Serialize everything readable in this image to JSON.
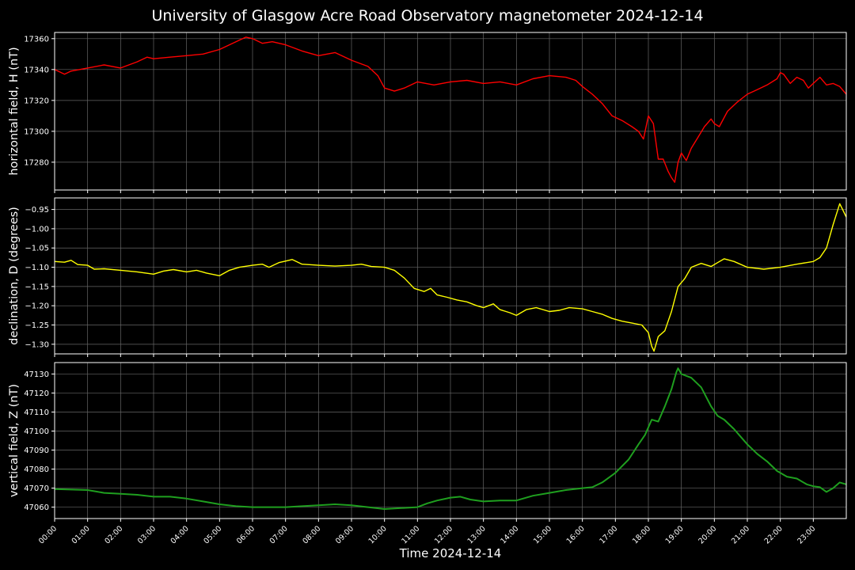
{
  "chart_data": {
    "title": "University of Glasgow Acre Road Observatory magnetometer 2024-12-14",
    "type": "line",
    "xlabel": "Time 2024-12-14",
    "x_range_hours": [
      0,
      24
    ],
    "x_ticks": [
      "00:00",
      "01:00",
      "02:00",
      "03:00",
      "04:00",
      "05:00",
      "06:00",
      "07:00",
      "08:00",
      "09:00",
      "10:00",
      "11:00",
      "12:00",
      "13:00",
      "14:00",
      "15:00",
      "16:00",
      "17:00",
      "18:00",
      "19:00",
      "20:00",
      "21:00",
      "22:00",
      "23:00"
    ],
    "grid": true,
    "background": "#000000",
    "panels": [
      {
        "name": "horizontal",
        "ylabel": "horizontal field, H (nT)",
        "color": "#ff0000",
        "ylim": [
          17262,
          17364
        ],
        "y_ticks": [
          "17280",
          "17300",
          "17320",
          "17340",
          "17360"
        ],
        "y_tick_values": [
          17280,
          17300,
          17320,
          17340,
          17360
        ],
        "points": [
          [
            0,
            17340
          ],
          [
            0.3,
            17337
          ],
          [
            0.5,
            17339
          ],
          [
            1,
            17341
          ],
          [
            1.5,
            17343
          ],
          [
            2,
            17341
          ],
          [
            2.5,
            17345
          ],
          [
            2.8,
            17348
          ],
          [
            3,
            17347
          ],
          [
            3.5,
            17348
          ],
          [
            4,
            17349
          ],
          [
            4.5,
            17350
          ],
          [
            5,
            17353
          ],
          [
            5.3,
            17356
          ],
          [
            5.6,
            17359
          ],
          [
            5.8,
            17361
          ],
          [
            6,
            17360
          ],
          [
            6.3,
            17357
          ],
          [
            6.6,
            17358
          ],
          [
            7,
            17356
          ],
          [
            7.5,
            17352
          ],
          [
            8,
            17349
          ],
          [
            8.5,
            17351
          ],
          [
            9,
            17346
          ],
          [
            9.5,
            17342
          ],
          [
            9.8,
            17336
          ],
          [
            10,
            17328
          ],
          [
            10.3,
            17326
          ],
          [
            10.6,
            17328
          ],
          [
            11,
            17332
          ],
          [
            11.5,
            17330
          ],
          [
            12,
            17332
          ],
          [
            12.5,
            17333
          ],
          [
            13,
            17331
          ],
          [
            13.5,
            17332
          ],
          [
            14,
            17330
          ],
          [
            14.5,
            17334
          ],
          [
            15,
            17336
          ],
          [
            15.5,
            17335
          ],
          [
            15.8,
            17333
          ],
          [
            16,
            17329
          ],
          [
            16.3,
            17324
          ],
          [
            16.6,
            17318
          ],
          [
            16.9,
            17310
          ],
          [
            17.2,
            17307
          ],
          [
            17.5,
            17303
          ],
          [
            17.7,
            17300
          ],
          [
            17.85,
            17295
          ],
          [
            18,
            17310
          ],
          [
            18.15,
            17305
          ],
          [
            18.3,
            17282
          ],
          [
            18.45,
            17282
          ],
          [
            18.6,
            17274
          ],
          [
            18.7,
            17270
          ],
          [
            18.8,
            17267
          ],
          [
            18.9,
            17280
          ],
          [
            19,
            17286
          ],
          [
            19.15,
            17281
          ],
          [
            19.3,
            17289
          ],
          [
            19.5,
            17296
          ],
          [
            19.7,
            17303
          ],
          [
            19.9,
            17308
          ],
          [
            20,
            17305
          ],
          [
            20.15,
            17303
          ],
          [
            20.4,
            17313
          ],
          [
            20.7,
            17319
          ],
          [
            21,
            17324
          ],
          [
            21.3,
            17327
          ],
          [
            21.6,
            17330
          ],
          [
            21.9,
            17334
          ],
          [
            22,
            17338
          ],
          [
            22.1,
            17337
          ],
          [
            22.3,
            17331
          ],
          [
            22.5,
            17335
          ],
          [
            22.7,
            17333
          ],
          [
            22.85,
            17328
          ],
          [
            23,
            17331
          ],
          [
            23.2,
            17335
          ],
          [
            23.4,
            17330
          ],
          [
            23.6,
            17331
          ],
          [
            23.8,
            17329
          ],
          [
            24,
            17324
          ]
        ]
      },
      {
        "name": "declination",
        "ylabel": "declination, D (degrees)",
        "color": "#ffff00",
        "ylim": [
          -1.325,
          -0.92
        ],
        "y_ticks": [
          "−1.30",
          "−1.25",
          "−1.20",
          "−1.15",
          "−1.10",
          "−1.05",
          "−1.00",
          "−0.95"
        ],
        "y_tick_values": [
          -1.3,
          -1.25,
          -1.2,
          -1.15,
          -1.1,
          -1.05,
          -1.0,
          -0.95
        ],
        "points": [
          [
            0,
            -1.085
          ],
          [
            0.3,
            -1.087
          ],
          [
            0.5,
            -1.082
          ],
          [
            0.7,
            -1.093
          ],
          [
            1,
            -1.095
          ],
          [
            1.2,
            -1.105
          ],
          [
            1.5,
            -1.104
          ],
          [
            2,
            -1.108
          ],
          [
            2.5,
            -1.112
          ],
          [
            3,
            -1.118
          ],
          [
            3.3,
            -1.11
          ],
          [
            3.6,
            -1.106
          ],
          [
            4,
            -1.112
          ],
          [
            4.3,
            -1.108
          ],
          [
            4.6,
            -1.115
          ],
          [
            5,
            -1.122
          ],
          [
            5.3,
            -1.108
          ],
          [
            5.6,
            -1.1
          ],
          [
            6,
            -1.095
          ],
          [
            6.3,
            -1.092
          ],
          [
            6.5,
            -1.1
          ],
          [
            6.8,
            -1.088
          ],
          [
            7,
            -1.084
          ],
          [
            7.2,
            -1.08
          ],
          [
            7.5,
            -1.092
          ],
          [
            8,
            -1.095
          ],
          [
            8.5,
            -1.097
          ],
          [
            9,
            -1.095
          ],
          [
            9.3,
            -1.092
          ],
          [
            9.6,
            -1.098
          ],
          [
            10,
            -1.1
          ],
          [
            10.3,
            -1.108
          ],
          [
            10.6,
            -1.128
          ],
          [
            10.9,
            -1.155
          ],
          [
            11.2,
            -1.163
          ],
          [
            11.4,
            -1.155
          ],
          [
            11.6,
            -1.172
          ],
          [
            11.9,
            -1.178
          ],
          [
            12.2,
            -1.185
          ],
          [
            12.5,
            -1.19
          ],
          [
            12.8,
            -1.2
          ],
          [
            13,
            -1.205
          ],
          [
            13.3,
            -1.195
          ],
          [
            13.5,
            -1.21
          ],
          [
            13.8,
            -1.218
          ],
          [
            14,
            -1.225
          ],
          [
            14.3,
            -1.21
          ],
          [
            14.6,
            -1.205
          ],
          [
            15,
            -1.215
          ],
          [
            15.3,
            -1.212
          ],
          [
            15.6,
            -1.205
          ],
          [
            16,
            -1.208
          ],
          [
            16.3,
            -1.215
          ],
          [
            16.6,
            -1.222
          ],
          [
            16.9,
            -1.233
          ],
          [
            17.2,
            -1.24
          ],
          [
            17.5,
            -1.245
          ],
          [
            17.8,
            -1.25
          ],
          [
            18,
            -1.27
          ],
          [
            18.1,
            -1.305
          ],
          [
            18.17,
            -1.318
          ],
          [
            18.3,
            -1.28
          ],
          [
            18.5,
            -1.265
          ],
          [
            18.7,
            -1.215
          ],
          [
            18.9,
            -1.15
          ],
          [
            19.1,
            -1.13
          ],
          [
            19.3,
            -1.1
          ],
          [
            19.6,
            -1.09
          ],
          [
            19.9,
            -1.098
          ],
          [
            20.1,
            -1.088
          ],
          [
            20.3,
            -1.078
          ],
          [
            20.6,
            -1.085
          ],
          [
            21,
            -1.1
          ],
          [
            21.5,
            -1.105
          ],
          [
            22,
            -1.1
          ],
          [
            22.5,
            -1.092
          ],
          [
            23,
            -1.085
          ],
          [
            23.2,
            -1.075
          ],
          [
            23.4,
            -1.05
          ],
          [
            23.6,
            -0.99
          ],
          [
            23.8,
            -0.935
          ],
          [
            23.9,
            -0.952
          ],
          [
            24,
            -0.97
          ]
        ]
      },
      {
        "name": "vertical",
        "ylabel": "vertical field, Z (nT)",
        "color": "#1f9f1f",
        "ylim": [
          47054,
          47136
        ],
        "y_ticks": [
          "47060",
          "47070",
          "47080",
          "47090",
          "47100",
          "47110",
          "47120",
          "47130"
        ],
        "y_tick_values": [
          47060,
          47070,
          47080,
          47090,
          47100,
          47110,
          47120,
          47130
        ],
        "points": [
          [
            0,
            47069.5
          ],
          [
            1,
            47069
          ],
          [
            1.5,
            47067.5
          ],
          [
            2,
            47067
          ],
          [
            2.5,
            47066.5
          ],
          [
            3,
            47065.5
          ],
          [
            3.5,
            47065.5
          ],
          [
            4,
            47064.5
          ],
          [
            4.5,
            47063
          ],
          [
            5,
            47061.5
          ],
          [
            5.5,
            47060.5
          ],
          [
            6,
            47060
          ],
          [
            6.5,
            47060
          ],
          [
            7,
            47060
          ],
          [
            7.5,
            47060.5
          ],
          [
            8,
            47061
          ],
          [
            8.5,
            47061.5
          ],
          [
            9,
            47061
          ],
          [
            9.5,
            47060
          ],
          [
            10,
            47059
          ],
          [
            10.5,
            47059.5
          ],
          [
            11,
            47060
          ],
          [
            11.3,
            47062
          ],
          [
            11.6,
            47063.5
          ],
          [
            12,
            47065
          ],
          [
            12.3,
            47065.5
          ],
          [
            12.6,
            47064
          ],
          [
            13,
            47063
          ],
          [
            13.5,
            47063.5
          ],
          [
            14,
            47063.5
          ],
          [
            14.5,
            47066
          ],
          [
            15,
            47067.5
          ],
          [
            15.5,
            47069
          ],
          [
            16,
            47070
          ],
          [
            16.3,
            47070.5
          ],
          [
            16.6,
            47073
          ],
          [
            17,
            47078
          ],
          [
            17.4,
            47085
          ],
          [
            17.7,
            47093
          ],
          [
            17.9,
            47098
          ],
          [
            18.1,
            47106
          ],
          [
            18.3,
            47105
          ],
          [
            18.5,
            47113
          ],
          [
            18.7,
            47122
          ],
          [
            18.85,
            47131
          ],
          [
            18.9,
            47133
          ],
          [
            19,
            47130
          ],
          [
            19.3,
            47128
          ],
          [
            19.6,
            47123
          ],
          [
            19.9,
            47113
          ],
          [
            20.1,
            47108
          ],
          [
            20.3,
            47106
          ],
          [
            20.6,
            47101
          ],
          [
            21,
            47093
          ],
          [
            21.3,
            47088
          ],
          [
            21.6,
            47084
          ],
          [
            21.9,
            47079
          ],
          [
            22.2,
            47076
          ],
          [
            22.5,
            47075
          ],
          [
            22.8,
            47072
          ],
          [
            23,
            47071
          ],
          [
            23.2,
            47070.5
          ],
          [
            23.4,
            47068
          ],
          [
            23.6,
            47070
          ],
          [
            23.8,
            47073
          ],
          [
            24,
            47072
          ]
        ]
      }
    ]
  }
}
